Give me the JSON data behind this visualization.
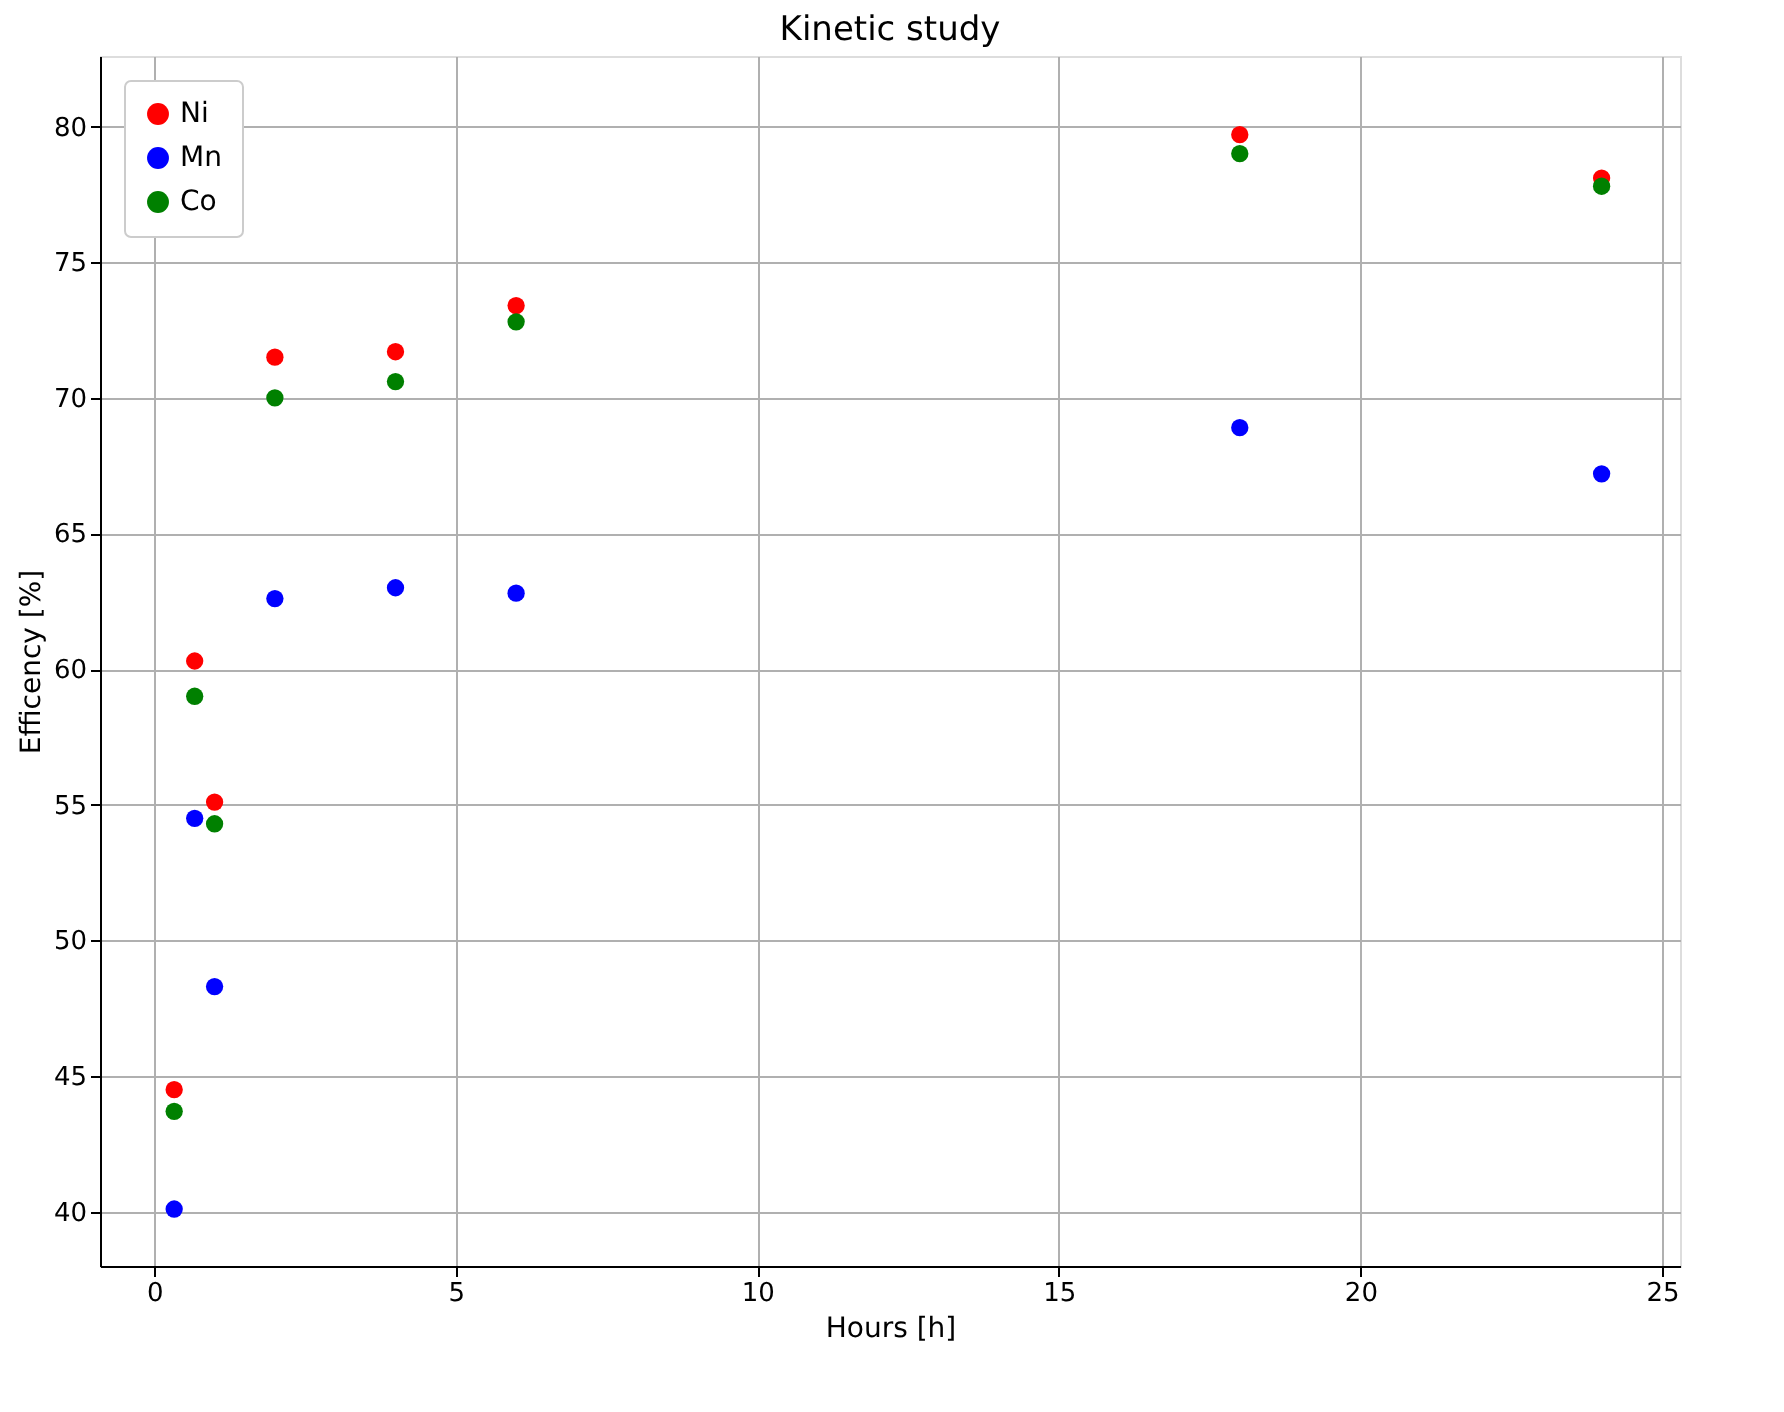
{
  "chart_data": {
    "type": "scatter",
    "title": "Kinetic study",
    "xlabel": "Hours [h]",
    "ylabel": "Efficency [%]",
    "x": [
      0.33,
      0.67,
      1,
      2,
      4,
      6,
      18,
      24
    ],
    "series": [
      {
        "name": "Ni",
        "color": "#ff0000",
        "values": [
          44.5,
          60.3,
          55.1,
          71.5,
          71.7,
          73.4,
          79.7,
          78.1
        ]
      },
      {
        "name": "Mn",
        "color": "#0000ff",
        "values": [
          40.1,
          54.5,
          48.3,
          62.6,
          63.0,
          62.8,
          68.9,
          67.2
        ]
      },
      {
        "name": "Co",
        "color": "#008000",
        "values": [
          43.7,
          59.0,
          54.3,
          70.0,
          70.6,
          72.8,
          79.0,
          77.8
        ]
      }
    ],
    "xlim": [
      -0.9,
      25.3
    ],
    "ylim": [
      38.0,
      82.6
    ],
    "xticks": [
      0,
      5,
      10,
      15,
      20,
      25
    ],
    "yticks": [
      40,
      45,
      50,
      55,
      60,
      65,
      70,
      75,
      80
    ],
    "grid": true,
    "legend": "top left",
    "marker": "circle"
  }
}
